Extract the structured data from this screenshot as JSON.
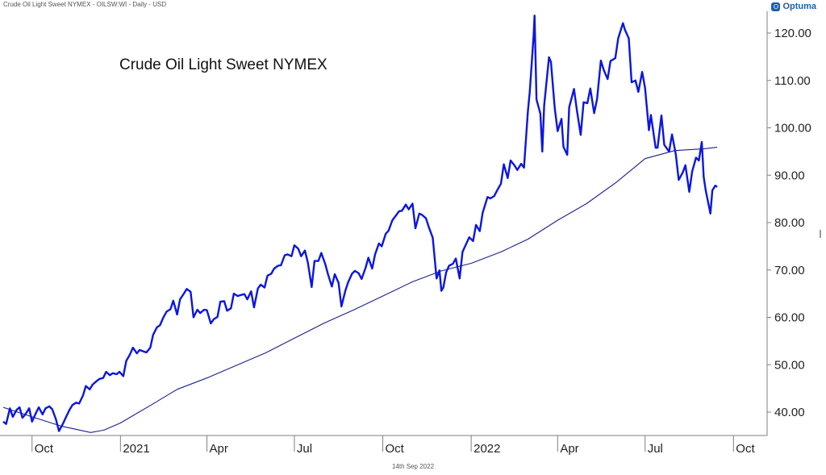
{
  "header": {
    "info": "Crude Oil Light Sweet NYMEX - OILSW:WI - Daily - USD",
    "brand": "Optuma"
  },
  "footer": {
    "date": "14th Sep 2022"
  },
  "colors": {
    "price": "#0b16e0",
    "ma": "#1a1f8c",
    "axis": "#7f7f7f",
    "text": "#222222"
  },
  "chart_data": {
    "type": "line",
    "title": "Crude Oil Light Sweet NYMEX",
    "xlabel": "",
    "ylabel": "",
    "x_axis_type": "date",
    "xlim": [
      "2020-09-01",
      "2022-11-05"
    ],
    "ylim": [
      35,
      125
    ],
    "grid": false,
    "y_axis_position": "right",
    "y_ticks": [
      40,
      50,
      60,
      70,
      80,
      90,
      100,
      110,
      120
    ],
    "y_tick_labels": [
      "40.00",
      "50.00",
      "60.00",
      "70.00",
      "80.00",
      "90.00",
      "100.00",
      "110.00",
      "120.00"
    ],
    "x_ticks": [
      {
        "date": "2020-10-01",
        "label": "Oct"
      },
      {
        "date": "2021-01-01",
        "label": "2021"
      },
      {
        "date": "2021-04-01",
        "label": "Apr"
      },
      {
        "date": "2021-07-01",
        "label": "Jul"
      },
      {
        "date": "2021-10-01",
        "label": "Oct"
      },
      {
        "date": "2022-01-01",
        "label": "2022"
      },
      {
        "date": "2022-04-01",
        "label": "Apr"
      },
      {
        "date": "2022-07-01",
        "label": "Jul"
      },
      {
        "date": "2022-10-01",
        "label": "Oct"
      }
    ],
    "series": [
      {
        "name": "",
        "role": "price",
        "points": [
          [
            "2020-09-01",
            38.0
          ],
          [
            "2020-09-04",
            37.5
          ],
          [
            "2020-09-08",
            40.8
          ],
          [
            "2020-09-11",
            39.0
          ],
          [
            "2020-09-15",
            40.5
          ],
          [
            "2020-09-18",
            41.0
          ],
          [
            "2020-09-21",
            38.8
          ],
          [
            "2020-09-24",
            39.5
          ],
          [
            "2020-09-28",
            40.8
          ],
          [
            "2020-10-01",
            38.0
          ],
          [
            "2020-10-05",
            39.8
          ],
          [
            "2020-10-08",
            41.0
          ],
          [
            "2020-10-12",
            39.5
          ],
          [
            "2020-10-15",
            40.8
          ],
          [
            "2020-10-19",
            41.2
          ],
          [
            "2020-10-22",
            40.6
          ],
          [
            "2020-10-26",
            38.4
          ],
          [
            "2020-10-29",
            36.0
          ],
          [
            "2020-11-02",
            37.5
          ],
          [
            "2020-11-05",
            38.8
          ],
          [
            "2020-11-09",
            40.5
          ],
          [
            "2020-11-12",
            41.5
          ],
          [
            "2020-11-16",
            42.0
          ],
          [
            "2020-11-19",
            41.8
          ],
          [
            "2020-11-23",
            43.5
          ],
          [
            "2020-11-26",
            45.5
          ],
          [
            "2020-11-30",
            44.8
          ],
          [
            "2020-12-03",
            45.8
          ],
          [
            "2020-12-07",
            46.5
          ],
          [
            "2020-12-10",
            47.0
          ],
          [
            "2020-12-14",
            47.2
          ],
          [
            "2020-12-17",
            48.5
          ],
          [
            "2020-12-21",
            47.8
          ],
          [
            "2020-12-24",
            48.2
          ],
          [
            "2020-12-28",
            48.0
          ],
          [
            "2020-12-31",
            48.5
          ],
          [
            "2021-01-04",
            47.6
          ],
          [
            "2021-01-07",
            50.8
          ],
          [
            "2021-01-11",
            52.2
          ],
          [
            "2021-01-14",
            53.6
          ],
          [
            "2021-01-18",
            52.4
          ],
          [
            "2021-01-21",
            53.1
          ],
          [
            "2021-01-25",
            52.8
          ],
          [
            "2021-01-28",
            52.6
          ],
          [
            "2021-02-01",
            53.6
          ],
          [
            "2021-02-04",
            56.3
          ],
          [
            "2021-02-08",
            57.9
          ],
          [
            "2021-02-11",
            58.3
          ],
          [
            "2021-02-15",
            60.1
          ],
          [
            "2021-02-18",
            61.2
          ],
          [
            "2021-02-22",
            61.7
          ],
          [
            "2021-02-25",
            63.5
          ],
          [
            "2021-03-01",
            60.6
          ],
          [
            "2021-03-04",
            63.8
          ],
          [
            "2021-03-08",
            65.0
          ],
          [
            "2021-03-11",
            66.0
          ],
          [
            "2021-03-15",
            65.4
          ],
          [
            "2021-03-18",
            60.0
          ],
          [
            "2021-03-22",
            61.6
          ],
          [
            "2021-03-25",
            60.9
          ],
          [
            "2021-03-29",
            61.6
          ],
          [
            "2021-04-01",
            61.5
          ],
          [
            "2021-04-05",
            58.7
          ],
          [
            "2021-04-08",
            59.6
          ],
          [
            "2021-04-12",
            60.1
          ],
          [
            "2021-04-15",
            63.3
          ],
          [
            "2021-04-19",
            63.4
          ],
          [
            "2021-04-22",
            61.4
          ],
          [
            "2021-04-26",
            61.9
          ],
          [
            "2021-04-29",
            65.0
          ],
          [
            "2021-05-03",
            64.5
          ],
          [
            "2021-05-06",
            64.7
          ],
          [
            "2021-05-10",
            64.9
          ],
          [
            "2021-05-13",
            63.8
          ],
          [
            "2021-05-17",
            65.5
          ],
          [
            "2021-05-20",
            62.1
          ],
          [
            "2021-05-24",
            66.1
          ],
          [
            "2021-05-27",
            66.9
          ],
          [
            "2021-05-31",
            66.3
          ],
          [
            "2021-06-03",
            68.8
          ],
          [
            "2021-06-07",
            69.2
          ],
          [
            "2021-06-10",
            70.3
          ],
          [
            "2021-06-14",
            70.9
          ],
          [
            "2021-06-17",
            71.0
          ],
          [
            "2021-06-21",
            73.1
          ],
          [
            "2021-06-24",
            73.3
          ],
          [
            "2021-06-28",
            72.9
          ],
          [
            "2021-07-01",
            75.2
          ],
          [
            "2021-07-05",
            74.5
          ],
          [
            "2021-07-08",
            72.9
          ],
          [
            "2021-07-12",
            74.1
          ],
          [
            "2021-07-15",
            71.6
          ],
          [
            "2021-07-19",
            66.4
          ],
          [
            "2021-07-22",
            71.9
          ],
          [
            "2021-07-26",
            71.9
          ],
          [
            "2021-07-29",
            73.6
          ],
          [
            "2021-08-02",
            71.3
          ],
          [
            "2021-08-05",
            69.1
          ],
          [
            "2021-08-09",
            66.5
          ],
          [
            "2021-08-12",
            69.1
          ],
          [
            "2021-08-16",
            67.3
          ],
          [
            "2021-08-19",
            62.3
          ],
          [
            "2021-08-23",
            65.6
          ],
          [
            "2021-08-26",
            67.4
          ],
          [
            "2021-08-30",
            69.2
          ],
          [
            "2021-09-02",
            69.8
          ],
          [
            "2021-09-06",
            69.3
          ],
          [
            "2021-09-09",
            68.1
          ],
          [
            "2021-09-13",
            70.4
          ],
          [
            "2021-09-16",
            72.6
          ],
          [
            "2021-09-20",
            70.3
          ],
          [
            "2021-09-23",
            73.3
          ],
          [
            "2021-09-27",
            75.6
          ],
          [
            "2021-09-30",
            75.0
          ],
          [
            "2021-10-04",
            77.6
          ],
          [
            "2021-10-07",
            78.3
          ],
          [
            "2021-10-11",
            80.5
          ],
          [
            "2021-10-14",
            81.3
          ],
          [
            "2021-10-18",
            82.4
          ],
          [
            "2021-10-21",
            82.5
          ],
          [
            "2021-10-25",
            83.8
          ],
          [
            "2021-10-28",
            82.8
          ],
          [
            "2021-11-01",
            84.0
          ],
          [
            "2021-11-04",
            78.8
          ],
          [
            "2021-11-08",
            81.9
          ],
          [
            "2021-11-11",
            81.6
          ],
          [
            "2021-11-15",
            80.9
          ],
          [
            "2021-11-18",
            79.0
          ],
          [
            "2021-11-22",
            76.8
          ],
          [
            "2021-11-26",
            68.2
          ],
          [
            "2021-11-29",
            69.9
          ],
          [
            "2021-12-01",
            65.6
          ],
          [
            "2021-12-03",
            66.3
          ],
          [
            "2021-12-06",
            69.5
          ],
          [
            "2021-12-09",
            70.9
          ],
          [
            "2021-12-13",
            71.3
          ],
          [
            "2021-12-16",
            72.4
          ],
          [
            "2021-12-20",
            68.2
          ],
          [
            "2021-12-23",
            73.8
          ],
          [
            "2021-12-27",
            75.6
          ],
          [
            "2021-12-30",
            76.9
          ],
          [
            "2022-01-03",
            76.1
          ],
          [
            "2022-01-06",
            79.5
          ],
          [
            "2022-01-10",
            78.2
          ],
          [
            "2022-01-13",
            82.1
          ],
          [
            "2022-01-18",
            85.4
          ],
          [
            "2022-01-21",
            85.1
          ],
          [
            "2022-01-25",
            85.6
          ],
          [
            "2022-01-28",
            86.8
          ],
          [
            "2022-02-01",
            88.2
          ],
          [
            "2022-02-04",
            92.3
          ],
          [
            "2022-02-08",
            89.4
          ],
          [
            "2022-02-11",
            93.1
          ],
          [
            "2022-02-15",
            92.1
          ],
          [
            "2022-02-18",
            91.1
          ],
          [
            "2022-02-22",
            92.4
          ],
          [
            "2022-02-25",
            91.6
          ],
          [
            "2022-03-01",
            103.4
          ],
          [
            "2022-03-03",
            107.7
          ],
          [
            "2022-03-07",
            119.4
          ],
          [
            "2022-03-08",
            123.7
          ],
          [
            "2022-03-10",
            106.0
          ],
          [
            "2022-03-14",
            103.0
          ],
          [
            "2022-03-16",
            95.0
          ],
          [
            "2022-03-18",
            104.7
          ],
          [
            "2022-03-23",
            114.9
          ],
          [
            "2022-03-25",
            113.9
          ],
          [
            "2022-03-29",
            104.2
          ],
          [
            "2022-04-01",
            99.3
          ],
          [
            "2022-04-05",
            101.9
          ],
          [
            "2022-04-07",
            96.0
          ],
          [
            "2022-04-11",
            94.3
          ],
          [
            "2022-04-13",
            104.3
          ],
          [
            "2022-04-18",
            108.2
          ],
          [
            "2022-04-21",
            103.8
          ],
          [
            "2022-04-25",
            98.5
          ],
          [
            "2022-04-28",
            105.4
          ],
          [
            "2022-05-02",
            105.2
          ],
          [
            "2022-05-05",
            108.3
          ],
          [
            "2022-05-09",
            103.1
          ],
          [
            "2022-05-12",
            106.1
          ],
          [
            "2022-05-16",
            114.2
          ],
          [
            "2022-05-19",
            112.2
          ],
          [
            "2022-05-23",
            110.3
          ],
          [
            "2022-05-26",
            114.1
          ],
          [
            "2022-05-31",
            114.7
          ],
          [
            "2022-06-03",
            118.9
          ],
          [
            "2022-06-08",
            122.1
          ],
          [
            "2022-06-10",
            120.7
          ],
          [
            "2022-06-14",
            118.9
          ],
          [
            "2022-06-17",
            109.6
          ],
          [
            "2022-06-21",
            110.0
          ],
          [
            "2022-06-24",
            107.6
          ],
          [
            "2022-06-28",
            111.8
          ],
          [
            "2022-07-01",
            108.4
          ],
          [
            "2022-07-05",
            99.5
          ],
          [
            "2022-07-07",
            102.7
          ],
          [
            "2022-07-12",
            95.8
          ],
          [
            "2022-07-14",
            95.8
          ],
          [
            "2022-07-18",
            102.6
          ],
          [
            "2022-07-21",
            96.4
          ],
          [
            "2022-07-26",
            94.98
          ],
          [
            "2022-07-29",
            98.6
          ],
          [
            "2022-08-02",
            94.4
          ],
          [
            "2022-08-05",
            89.0
          ],
          [
            "2022-08-09",
            90.5
          ],
          [
            "2022-08-12",
            92.1
          ],
          [
            "2022-08-16",
            86.5
          ],
          [
            "2022-08-19",
            90.8
          ],
          [
            "2022-08-23",
            93.7
          ],
          [
            "2022-08-26",
            93.1
          ],
          [
            "2022-08-29",
            97.0
          ],
          [
            "2022-08-31",
            89.6
          ],
          [
            "2022-09-02",
            86.9
          ],
          [
            "2022-09-07",
            81.9
          ],
          [
            "2022-09-09",
            86.8
          ],
          [
            "2022-09-12",
            87.8
          ],
          [
            "2022-09-14",
            87.5
          ]
        ]
      },
      {
        "name": "",
        "role": "moving-average",
        "points": [
          [
            "2020-09-01",
            41.0
          ],
          [
            "2020-10-01",
            39.0
          ],
          [
            "2020-11-01",
            37.0
          ],
          [
            "2020-12-01",
            35.7
          ],
          [
            "2020-12-15",
            36.2
          ],
          [
            "2021-01-01",
            37.7
          ],
          [
            "2021-02-01",
            41.4
          ],
          [
            "2021-03-01",
            44.8
          ],
          [
            "2021-04-01",
            47.2
          ],
          [
            "2021-05-01",
            49.8
          ],
          [
            "2021-06-01",
            52.5
          ],
          [
            "2021-07-01",
            55.6
          ],
          [
            "2021-08-01",
            58.8
          ],
          [
            "2021-09-01",
            61.6
          ],
          [
            "2021-10-01",
            64.5
          ],
          [
            "2021-11-01",
            67.5
          ],
          [
            "2021-12-01",
            69.8
          ],
          [
            "2022-01-01",
            71.4
          ],
          [
            "2022-02-01",
            73.8
          ],
          [
            "2022-03-01",
            76.5
          ],
          [
            "2022-04-01",
            80.5
          ],
          [
            "2022-05-01",
            84.0
          ],
          [
            "2022-06-01",
            88.5
          ],
          [
            "2022-07-01",
            93.5
          ],
          [
            "2022-08-01",
            95.2
          ],
          [
            "2022-09-01",
            95.6
          ],
          [
            "2022-09-14",
            95.9
          ]
        ]
      }
    ]
  }
}
